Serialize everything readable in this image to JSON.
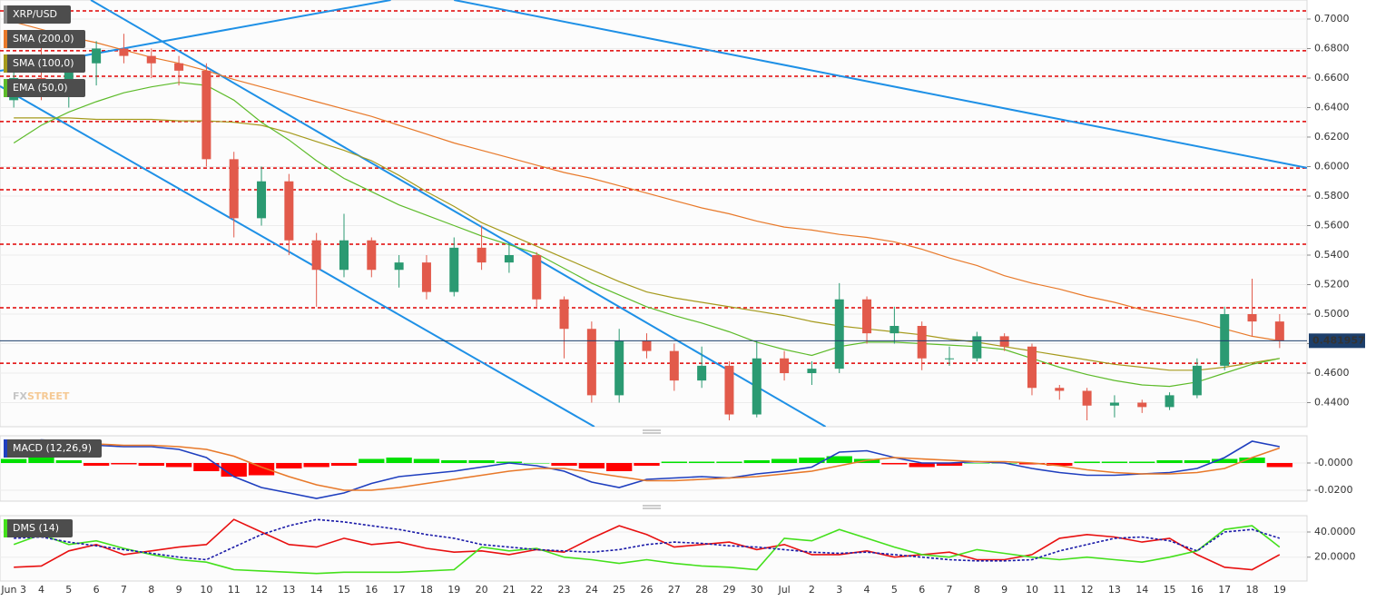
{
  "chart_data": [
    {
      "type": "candlestick",
      "title": "XRP/USD",
      "open": [
        0.645,
        0.66,
        0.655,
        0.67,
        0.68,
        0.675,
        0.67,
        0.665,
        0.605,
        0.565,
        0.59,
        0.55,
        0.53,
        0.55,
        0.53,
        0.535,
        0.515,
        0.545,
        0.535,
        0.54,
        0.51,
        0.49,
        0.445,
        0.482,
        0.475,
        0.455,
        0.465,
        0.432,
        0.47,
        0.46,
        0.463,
        0.51,
        0.487,
        0.492,
        0.47,
        0.47,
        0.485,
        0.478,
        0.45,
        0.448,
        0.438,
        0.44,
        0.437,
        0.445,
        0.465,
        0.5,
        0.495
      ],
      "high": [
        0.665,
        0.69,
        0.675,
        0.685,
        0.69,
        0.68,
        0.675,
        0.67,
        0.61,
        0.6,
        0.595,
        0.555,
        0.568,
        0.552,
        0.54,
        0.54,
        0.552,
        0.56,
        0.548,
        0.542,
        0.512,
        0.495,
        0.49,
        0.487,
        0.48,
        0.478,
        0.468,
        0.482,
        0.475,
        0.468,
        0.521,
        0.512,
        0.505,
        0.495,
        0.478,
        0.488,
        0.487,
        0.48,
        0.452,
        0.45,
        0.445,
        0.442,
        0.447,
        0.47,
        0.505,
        0.524,
        0.5
      ],
      "low": [
        0.64,
        0.645,
        0.64,
        0.655,
        0.67,
        0.66,
        0.655,
        0.6,
        0.552,
        0.56,
        0.54,
        0.505,
        0.525,
        0.525,
        0.518,
        0.51,
        0.512,
        0.53,
        0.528,
        0.505,
        0.47,
        0.44,
        0.44,
        0.47,
        0.448,
        0.45,
        0.428,
        0.43,
        0.455,
        0.452,
        0.46,
        0.48,
        0.48,
        0.462,
        0.465,
        0.468,
        0.475,
        0.445,
        0.442,
        0.428,
        0.43,
        0.433,
        0.435,
        0.443,
        0.462,
        0.485,
        0.477
      ],
      "close": [
        0.66,
        0.655,
        0.67,
        0.68,
        0.675,
        0.67,
        0.665,
        0.605,
        0.565,
        0.59,
        0.55,
        0.53,
        0.55,
        0.53,
        0.535,
        0.515,
        0.545,
        0.535,
        0.54,
        0.51,
        0.49,
        0.445,
        0.482,
        0.475,
        0.455,
        0.465,
        0.432,
        0.47,
        0.46,
        0.463,
        0.51,
        0.487,
        0.492,
        0.47,
        0.47,
        0.485,
        0.478,
        0.45,
        0.448,
        0.438,
        0.44,
        0.437,
        0.445,
        0.465,
        0.5,
        0.495,
        0.482
      ],
      "up_color": "#2b9a72",
      "down_color": "#e25a4b",
      "series": [
        {
          "name": "SMA (200,0)",
          "color": "#e8792a",
          "values": [
            0.698,
            0.693,
            0.688,
            0.684,
            0.679,
            0.674,
            0.67,
            0.665,
            0.659,
            0.654,
            0.649,
            0.644,
            0.639,
            0.634,
            0.628,
            0.622,
            0.616,
            0.611,
            0.606,
            0.601,
            0.596,
            0.592,
            0.587,
            0.582,
            0.577,
            0.572,
            0.568,
            0.563,
            0.559,
            0.557,
            0.554,
            0.552,
            0.549,
            0.544,
            0.538,
            0.533,
            0.526,
            0.521,
            0.517,
            0.512,
            0.508,
            0.503,
            0.499,
            0.495,
            0.49,
            0.485,
            0.482
          ]
        },
        {
          "name": "SMA (100,0)",
          "color": "#a59a1c",
          "values": [
            0.633,
            0.633,
            0.633,
            0.632,
            0.632,
            0.632,
            0.631,
            0.631,
            0.63,
            0.628,
            0.623,
            0.617,
            0.611,
            0.604,
            0.594,
            0.583,
            0.573,
            0.562,
            0.554,
            0.546,
            0.538,
            0.53,
            0.522,
            0.515,
            0.511,
            0.508,
            0.505,
            0.502,
            0.499,
            0.495,
            0.492,
            0.49,
            0.488,
            0.486,
            0.483,
            0.481,
            0.478,
            0.475,
            0.472,
            0.469,
            0.466,
            0.464,
            0.462,
            0.462,
            0.464,
            0.467,
            0.47
          ]
        },
        {
          "name": "EMA (50,0)",
          "color": "#5dbb2a",
          "values": [
            0.616,
            0.628,
            0.637,
            0.644,
            0.65,
            0.654,
            0.657,
            0.655,
            0.645,
            0.63,
            0.618,
            0.604,
            0.592,
            0.583,
            0.574,
            0.567,
            0.56,
            0.553,
            0.547,
            0.541,
            0.531,
            0.521,
            0.513,
            0.505,
            0.499,
            0.494,
            0.488,
            0.481,
            0.476,
            0.472,
            0.478,
            0.481,
            0.481,
            0.48,
            0.479,
            0.478,
            0.476,
            0.47,
            0.464,
            0.459,
            0.455,
            0.452,
            0.451,
            0.454,
            0.46,
            0.466,
            0.47
          ]
        }
      ],
      "levels": [
        0.7055,
        0.6785,
        0.6612,
        0.6305,
        0.599,
        0.5843,
        0.5474,
        0.5043,
        0.4667
      ],
      "level_color": "#e00000",
      "trendlines": [
        {
          "x": [
            -0.5,
            13.7
          ],
          "y": [
            0.6649,
            0.7129
          ]
        },
        {
          "x": [
            16.0,
            47.0
          ],
          "y": [
            0.7129,
            0.5991
          ]
        },
        {
          "x": [
            2.8,
            29.5
          ],
          "y": [
            0.7129,
            0.4237
          ]
        },
        {
          "x": [
            -0.5,
            21.1
          ],
          "y": [
            0.6545,
            0.4237
          ]
        }
      ],
      "trendline_color": "#1e90e6",
      "last_price": 0.481957,
      "last_price_color": "#1d3f6b",
      "watermark": [
        "FX",
        "STREET"
      ],
      "ylim": [
        0.4237,
        0.7129
      ],
      "yticks": [
        {
          "value": 0.44,
          "label": "0.4400"
        },
        {
          "value": 0.46,
          "label": "0.4600"
        },
        {
          "value": 0.48,
          "label": "0.4800"
        },
        {
          "value": 0.5,
          "label": "0.5000"
        },
        {
          "value": 0.52,
          "label": "0.5200"
        },
        {
          "value": 0.54,
          "label": "0.5400"
        },
        {
          "value": 0.56,
          "label": "0.5600"
        },
        {
          "value": 0.58,
          "label": "0.5800"
        },
        {
          "value": 0.6,
          "label": "0.6000"
        },
        {
          "value": 0.62,
          "label": "0.6200"
        },
        {
          "value": 0.64,
          "label": "0.6400"
        },
        {
          "value": 0.66,
          "label": "0.6600"
        },
        {
          "value": 0.68,
          "label": "0.6800"
        },
        {
          "value": 0.7,
          "label": "0.7000"
        }
      ],
      "grid": true
    },
    {
      "type": "macd",
      "title": "MACD (12,26,9)",
      "histogram": [
        0.003,
        0.004,
        0.002,
        -0.002,
        -0.001,
        -0.002,
        -0.003,
        -0.006,
        -0.01,
        -0.009,
        -0.004,
        -0.003,
        -0.002,
        0.003,
        0.004,
        0.003,
        0.002,
        0.002,
        0.001,
        0.0,
        -0.002,
        -0.004,
        -0.006,
        -0.002,
        0.001,
        0.001,
        0.001,
        0.002,
        0.003,
        0.004,
        0.005,
        0.003,
        -0.001,
        -0.003,
        -0.002,
        0.0,
        0.0,
        -0.001,
        -0.002,
        0.001,
        0.001,
        0.001,
        0.002,
        0.002,
        0.003,
        0.004,
        -0.003
      ],
      "up_color": "#00e000",
      "down_color": "#ff0000",
      "series": [
        {
          "color": "#1f3fbf",
          "values": [
            0.014,
            0.017,
            0.016,
            0.013,
            0.012,
            0.012,
            0.01,
            0.004,
            -0.01,
            -0.018,
            -0.022,
            -0.026,
            -0.022,
            -0.015,
            -0.01,
            -0.008,
            -0.006,
            -0.003,
            0.0,
            -0.002,
            -0.006,
            -0.014,
            -0.018,
            -0.012,
            -0.011,
            -0.01,
            -0.011,
            -0.008,
            -0.006,
            -0.003,
            0.008,
            0.009,
            0.004,
            0.0,
            0.0,
            0.001,
            0.0,
            -0.004,
            -0.007,
            -0.009,
            -0.009,
            -0.008,
            -0.007,
            -0.004,
            0.004,
            0.016,
            0.012
          ]
        },
        {
          "color": "#e8792a",
          "values": [
            0.012,
            0.013,
            0.014,
            0.014,
            0.013,
            0.013,
            0.012,
            0.01,
            0.005,
            -0.003,
            -0.01,
            -0.016,
            -0.02,
            -0.02,
            -0.018,
            -0.015,
            -0.012,
            -0.009,
            -0.006,
            -0.004,
            -0.004,
            -0.007,
            -0.01,
            -0.013,
            -0.013,
            -0.012,
            -0.011,
            -0.01,
            -0.008,
            -0.006,
            -0.002,
            0.002,
            0.004,
            0.003,
            0.002,
            0.001,
            0.001,
            0.0,
            -0.002,
            -0.005,
            -0.007,
            -0.008,
            -0.008,
            -0.007,
            -0.004,
            0.004,
            0.011
          ]
        }
      ],
      "ylim": [
        -0.028,
        0.02
      ],
      "yticks": [
        {
          "value": 0,
          "label": "-0.0000"
        },
        {
          "value": -0.02,
          "label": "-0.0200"
        }
      ]
    },
    {
      "type": "dms",
      "title": "DMS (14)",
      "categories": [
        "Jun 3",
        "4",
        "5",
        "6",
        "7",
        "8",
        "9",
        "10",
        "11",
        "12",
        "13",
        "14",
        "15",
        "16",
        "17",
        "18",
        "19",
        "20",
        "21",
        "22",
        "23",
        "24",
        "25",
        "26",
        "27",
        "28",
        "29",
        "30",
        "Jul",
        "2",
        "3",
        "4",
        "5",
        "6",
        "7",
        "8",
        "9",
        "10",
        "11",
        "12",
        "13",
        "14",
        "15",
        "16",
        "17",
        "18",
        "19"
      ],
      "series": [
        {
          "color": "#e81010",
          "values": [
            12,
            13,
            25,
            30,
            22,
            25,
            28,
            30,
            50,
            40,
            30,
            28,
            35,
            30,
            32,
            27,
            24,
            25,
            22,
            26,
            24,
            35,
            45,
            38,
            28,
            30,
            32,
            26,
            30,
            22,
            22,
            25,
            20,
            22,
            24,
            18,
            18,
            22,
            35,
            38,
            36,
            32,
            35,
            22,
            12,
            10,
            22
          ]
        },
        {
          "color": "#44e01c",
          "values": [
            30,
            38,
            30,
            33,
            27,
            22,
            18,
            16,
            10,
            9,
            8,
            7,
            8,
            8,
            8,
            9,
            10,
            28,
            25,
            27,
            20,
            18,
            15,
            18,
            15,
            13,
            12,
            10,
            35,
            33,
            42,
            35,
            28,
            22,
            20,
            26,
            23,
            20,
            18,
            20,
            18,
            16,
            20,
            25,
            42,
            45,
            28
          ]
        },
        {
          "color": "#1a1aa8",
          "style": "dashed",
          "values": [
            35,
            36,
            32,
            29,
            26,
            23,
            20,
            18,
            28,
            38,
            45,
            50,
            48,
            45,
            42,
            38,
            35,
            30,
            28,
            26,
            25,
            24,
            26,
            30,
            32,
            31,
            29,
            28,
            26,
            24,
            23,
            24,
            22,
            20,
            18,
            17,
            17,
            18,
            25,
            30,
            35,
            36,
            33,
            25,
            40,
            42,
            35
          ]
        }
      ],
      "ylim": [
        1,
        53
      ],
      "yticks": [
        {
          "value": 40,
          "label": "40.0000"
        },
        {
          "value": 20,
          "label": "20.0000"
        }
      ]
    }
  ]
}
